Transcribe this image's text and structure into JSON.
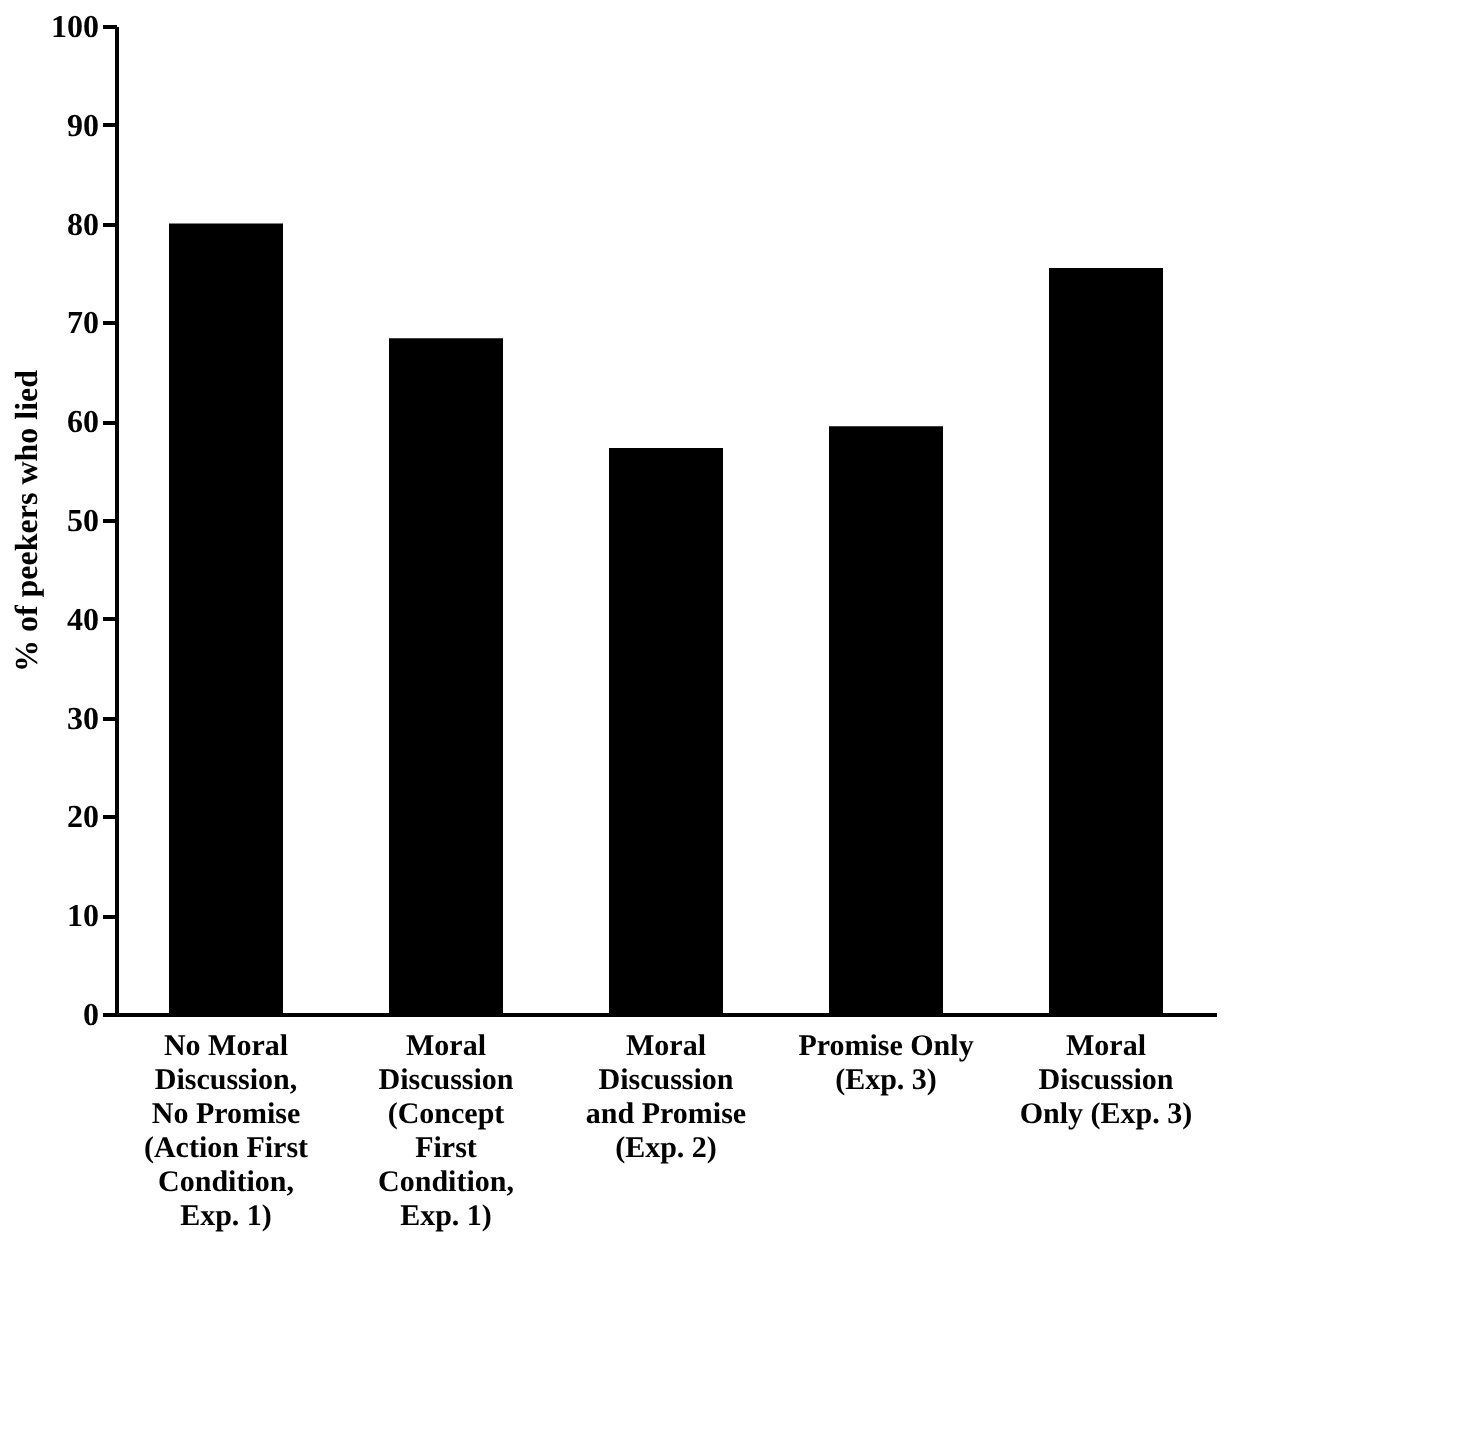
{
  "chart_data": {
    "type": "bar",
    "ylabel": "% of peekers who lied",
    "categories": [
      "No Moral Discussion, No Promise (Action First Condition, Exp. 1)",
      "Moral Discussion (Concept First Condition, Exp. 1)",
      "Moral Discussion and Promise (Exp. 2)",
      "Promise Only (Exp. 3)",
      "Moral Discussion Only (Exp. 3)"
    ],
    "values": [
      80,
      68.4,
      57.3,
      59.5,
      75.5
    ],
    "color": "#000000",
    "ylim": [
      0,
      100
    ],
    "yticks": [
      0,
      10,
      20,
      30,
      40,
      50,
      60,
      70,
      80,
      90,
      100
    ],
    "grid": false
  }
}
